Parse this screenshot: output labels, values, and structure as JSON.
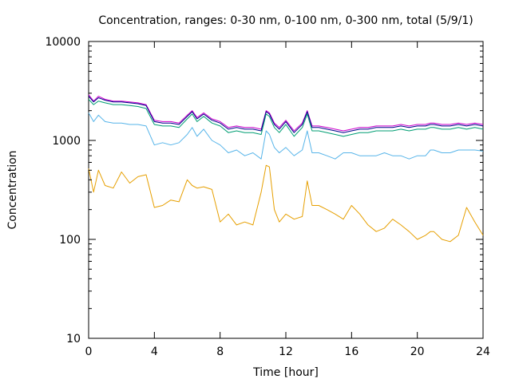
{
  "chart_data": {
    "type": "line",
    "title": "Concentration, ranges: 0-30 nm, 0-100 nm, 0-300 nm, total (5/9/1)",
    "xlabel": "Time [hour]",
    "ylabel": "Concentration",
    "xlim": [
      0,
      24
    ],
    "ylim": [
      10,
      10000
    ],
    "yscale": "log",
    "grid": false,
    "legend": "none",
    "x_ticks": [
      0,
      4,
      8,
      12,
      16,
      20,
      24
    ],
    "x_tick_labels": [
      "0",
      "4",
      "8",
      "12",
      "16",
      "20",
      "24"
    ],
    "y_ticks": [
      10,
      100,
      1000,
      10000
    ],
    "y_tick_labels": [
      "10",
      "100",
      "1000",
      "10000"
    ],
    "x": [
      0,
      0.3,
      0.6,
      1.0,
      1.5,
      2.0,
      2.5,
      3.0,
      3.5,
      4.0,
      4.5,
      5.0,
      5.5,
      6.0,
      6.3,
      6.6,
      7.0,
      7.5,
      8.0,
      8.5,
      9.0,
      9.5,
      10.0,
      10.5,
      10.8,
      11.0,
      11.3,
      11.6,
      12.0,
      12.5,
      13.0,
      13.3,
      13.6,
      14.0,
      14.5,
      15.0,
      15.5,
      16.0,
      16.5,
      17.0,
      17.5,
      18.0,
      18.5,
      19.0,
      19.5,
      20.0,
      20.5,
      20.8,
      21.0,
      21.5,
      22.0,
      22.5,
      23.0,
      23.5,
      24.0
    ],
    "series": [
      {
        "color": "#cc00cc",
        "values": [
          2900,
          2500,
          2800,
          2600,
          2500,
          2500,
          2450,
          2400,
          2300,
          1600,
          1550,
          1550,
          1500,
          1800,
          2000,
          1700,
          1900,
          1650,
          1550,
          1350,
          1400,
          1350,
          1350,
          1300,
          2000,
          1900,
          1500,
          1350,
          1600,
          1250,
          1500,
          2000,
          1400,
          1400,
          1350,
          1300,
          1250,
          1300,
          1350,
          1350,
          1400,
          1400,
          1400,
          1450,
          1400,
          1450,
          1450,
          1500,
          1500,
          1450,
          1450,
          1500,
          1450,
          1500,
          1450
        ]
      },
      {
        "color": "#00008b",
        "values": [
          2800,
          2450,
          2700,
          2550,
          2450,
          2450,
          2400,
          2350,
          2250,
          1550,
          1500,
          1500,
          1450,
          1750,
          1950,
          1650,
          1850,
          1600,
          1500,
          1300,
          1350,
          1300,
          1300,
          1250,
          1950,
          1850,
          1450,
          1300,
          1550,
          1200,
          1450,
          1950,
          1350,
          1350,
          1300,
          1250,
          1200,
          1250,
          1300,
          1300,
          1350,
          1350,
          1350,
          1400,
          1350,
          1400,
          1400,
          1450,
          1450,
          1400,
          1400,
          1450,
          1400,
          1450,
          1400
        ]
      },
      {
        "color": "#009e73",
        "values": [
          2600,
          2300,
          2500,
          2400,
          2300,
          2300,
          2250,
          2200,
          2100,
          1450,
          1400,
          1400,
          1350,
          1650,
          1850,
          1550,
          1750,
          1500,
          1400,
          1200,
          1250,
          1200,
          1200,
          1150,
          1850,
          1750,
          1350,
          1200,
          1450,
          1100,
          1350,
          1850,
          1250,
          1250,
          1200,
          1150,
          1100,
          1150,
          1200,
          1200,
          1250,
          1250,
          1250,
          1300,
          1250,
          1300,
          1300,
          1350,
          1350,
          1300,
          1300,
          1350,
          1300,
          1350,
          1300
        ]
      },
      {
        "color": "#56b4e9",
        "values": [
          1900,
          1550,
          1800,
          1550,
          1500,
          1500,
          1450,
          1450,
          1400,
          900,
          950,
          900,
          950,
          1150,
          1350,
          1100,
          1300,
          1000,
          900,
          750,
          800,
          700,
          750,
          650,
          1250,
          1150,
          850,
          750,
          850,
          700,
          800,
          1250,
          750,
          750,
          700,
          650,
          750,
          750,
          700,
          700,
          700,
          750,
          700,
          700,
          650,
          700,
          700,
          800,
          800,
          750,
          750,
          800,
          800,
          800,
          780
        ]
      },
      {
        "color": "#e69f00",
        "values": [
          520,
          300,
          500,
          350,
          330,
          480,
          370,
          430,
          450,
          210,
          220,
          250,
          240,
          400,
          350,
          330,
          340,
          320,
          150,
          180,
          140,
          150,
          140,
          300,
          560,
          540,
          200,
          150,
          180,
          160,
          170,
          390,
          220,
          220,
          200,
          180,
          160,
          220,
          180,
          140,
          120,
          130,
          160,
          140,
          120,
          100,
          110,
          120,
          120,
          100,
          95,
          110,
          210,
          150,
          110
        ]
      }
    ]
  }
}
